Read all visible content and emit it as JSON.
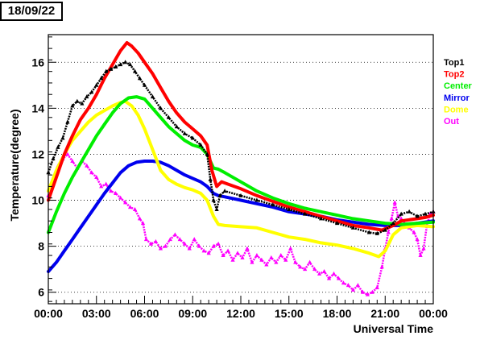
{
  "header": {
    "date": "18/09/22"
  },
  "chart_data": {
    "type": "line",
    "xlabel": "Universal Time",
    "ylabel": "Temperature(degree)",
    "xlim": [
      0,
      24
    ],
    "ylim": [
      5.5,
      17.2
    ],
    "x_ticks": [
      {
        "v": 0,
        "label": "00:00"
      },
      {
        "v": 3,
        "label": "03:00"
      },
      {
        "v": 6,
        "label": "06:00"
      },
      {
        "v": 9,
        "label": "09:00"
      },
      {
        "v": 12,
        "label": "12:00"
      },
      {
        "v": 15,
        "label": "15:00"
      },
      {
        "v": 18,
        "label": "18:00"
      },
      {
        "v": 21,
        "label": "21:00"
      },
      {
        "v": 24,
        "label": "00:00"
      }
    ],
    "y_ticks": [
      6,
      8,
      10,
      12,
      14,
      16
    ],
    "grid": "horizontal-dotted",
    "legend_position": "right",
    "series": [
      {
        "name": "Top1",
        "color": "#000000",
        "style": "markers",
        "points": [
          [
            0,
            11.2
          ],
          [
            0.3,
            11.8
          ],
          [
            0.6,
            12.3
          ],
          [
            0.9,
            12.7
          ],
          [
            1.2,
            13.4
          ],
          [
            1.5,
            14.1
          ],
          [
            1.8,
            14.3
          ],
          [
            2.1,
            14.2
          ],
          [
            2.4,
            14.5
          ],
          [
            2.7,
            14.7
          ],
          [
            3.0,
            15.0
          ],
          [
            3.3,
            15.3
          ],
          [
            3.6,
            15.6
          ],
          [
            3.9,
            15.7
          ],
          [
            4.2,
            15.8
          ],
          [
            4.5,
            15.9
          ],
          [
            4.8,
            16.0
          ],
          [
            5.1,
            15.9
          ],
          [
            5.4,
            15.6
          ],
          [
            5.7,
            15.3
          ],
          [
            6.0,
            15.0
          ],
          [
            6.5,
            14.5
          ],
          [
            7.0,
            14.0
          ],
          [
            7.5,
            13.6
          ],
          [
            8.0,
            13.2
          ],
          [
            8.5,
            12.9
          ],
          [
            9.0,
            12.7
          ],
          [
            9.5,
            12.4
          ],
          [
            9.9,
            12.0
          ],
          [
            10.1,
            10.9
          ],
          [
            10.3,
            10.0
          ],
          [
            10.5,
            9.6
          ],
          [
            10.7,
            10.2
          ],
          [
            11.0,
            10.4
          ],
          [
            12.0,
            10.2
          ],
          [
            13.0,
            10.0
          ],
          [
            14.0,
            9.8
          ],
          [
            15.0,
            9.6
          ],
          [
            16.0,
            9.4
          ],
          [
            17.0,
            9.2
          ],
          [
            18.0,
            9.0
          ],
          [
            19.0,
            8.8
          ],
          [
            20.0,
            8.6
          ],
          [
            20.5,
            8.55
          ],
          [
            21.0,
            8.7
          ],
          [
            21.5,
            9.0
          ],
          [
            22.0,
            9.4
          ],
          [
            22.5,
            9.5
          ],
          [
            23.0,
            9.3
          ],
          [
            23.5,
            9.4
          ],
          [
            24.0,
            9.5
          ]
        ]
      },
      {
        "name": "Top2",
        "color": "#ff0000",
        "style": "line",
        "points": [
          [
            0,
            10.0
          ],
          [
            0.5,
            11.0
          ],
          [
            1.0,
            12.0
          ],
          [
            1.5,
            12.8
          ],
          [
            2.0,
            13.5
          ],
          [
            2.5,
            14.0
          ],
          [
            3.0,
            14.6
          ],
          [
            3.5,
            15.3
          ],
          [
            4.0,
            15.9
          ],
          [
            4.5,
            16.5
          ],
          [
            4.9,
            16.85
          ],
          [
            5.2,
            16.7
          ],
          [
            5.6,
            16.4
          ],
          [
            6.0,
            16.0
          ],
          [
            6.5,
            15.5
          ],
          [
            7.0,
            14.9
          ],
          [
            7.5,
            14.3
          ],
          [
            8.0,
            13.8
          ],
          [
            8.5,
            13.4
          ],
          [
            9.0,
            13.1
          ],
          [
            9.5,
            12.8
          ],
          [
            9.9,
            12.4
          ],
          [
            10.2,
            11.3
          ],
          [
            10.5,
            10.6
          ],
          [
            10.8,
            10.8
          ],
          [
            11.0,
            10.75
          ],
          [
            12.0,
            10.5
          ],
          [
            13.0,
            10.2
          ],
          [
            14.0,
            9.95
          ],
          [
            15.0,
            9.7
          ],
          [
            16.0,
            9.5
          ],
          [
            17.0,
            9.3
          ],
          [
            18.0,
            9.1
          ],
          [
            19.0,
            8.9
          ],
          [
            20.0,
            8.8
          ],
          [
            20.8,
            8.7
          ],
          [
            21.5,
            8.9
          ],
          [
            22.0,
            9.1
          ],
          [
            22.5,
            9.15
          ],
          [
            23.0,
            9.2
          ],
          [
            23.5,
            9.25
          ],
          [
            24.0,
            9.35
          ]
        ]
      },
      {
        "name": "Center",
        "color": "#00ee00",
        "style": "line",
        "points": [
          [
            0,
            8.6
          ],
          [
            0.5,
            9.5
          ],
          [
            1.0,
            10.3
          ],
          [
            1.5,
            11.0
          ],
          [
            2.0,
            11.6
          ],
          [
            2.5,
            12.2
          ],
          [
            3.0,
            12.8
          ],
          [
            3.5,
            13.3
          ],
          [
            4.0,
            13.8
          ],
          [
            4.5,
            14.2
          ],
          [
            5.0,
            14.45
          ],
          [
            5.5,
            14.5
          ],
          [
            6.0,
            14.4
          ],
          [
            6.5,
            14.0
          ],
          [
            7.0,
            13.6
          ],
          [
            7.5,
            13.2
          ],
          [
            8.0,
            12.9
          ],
          [
            8.5,
            12.6
          ],
          [
            9.0,
            12.4
          ],
          [
            9.5,
            12.3
          ],
          [
            9.9,
            12.0
          ],
          [
            10.3,
            11.4
          ],
          [
            10.6,
            11.35
          ],
          [
            11.0,
            11.2
          ],
          [
            12.0,
            10.8
          ],
          [
            13.0,
            10.4
          ],
          [
            14.0,
            10.1
          ],
          [
            15.0,
            9.85
          ],
          [
            16.0,
            9.65
          ],
          [
            17.0,
            9.5
          ],
          [
            18.0,
            9.35
          ],
          [
            19.0,
            9.2
          ],
          [
            20.0,
            9.1
          ],
          [
            21.0,
            9.0
          ],
          [
            22.0,
            8.95
          ],
          [
            23.0,
            9.0
          ],
          [
            24.0,
            9.05
          ]
        ]
      },
      {
        "name": "Mirror",
        "color": "#0000ee",
        "style": "line",
        "points": [
          [
            0,
            6.9
          ],
          [
            0.5,
            7.3
          ],
          [
            1.0,
            7.8
          ],
          [
            1.5,
            8.3
          ],
          [
            2.0,
            8.8
          ],
          [
            2.5,
            9.3
          ],
          [
            3.0,
            9.8
          ],
          [
            3.5,
            10.3
          ],
          [
            4.0,
            10.75
          ],
          [
            4.5,
            11.2
          ],
          [
            5.0,
            11.5
          ],
          [
            5.5,
            11.65
          ],
          [
            6.0,
            11.7
          ],
          [
            6.5,
            11.7
          ],
          [
            7.0,
            11.65
          ],
          [
            7.5,
            11.5
          ],
          [
            8.0,
            11.3
          ],
          [
            8.5,
            11.1
          ],
          [
            9.0,
            10.95
          ],
          [
            9.5,
            10.8
          ],
          [
            9.9,
            10.6
          ],
          [
            10.3,
            10.3
          ],
          [
            10.6,
            10.2
          ],
          [
            11.0,
            10.15
          ],
          [
            12.0,
            10.0
          ],
          [
            13.0,
            9.85
          ],
          [
            14.0,
            9.7
          ],
          [
            15.0,
            9.5
          ],
          [
            16.0,
            9.4
          ],
          [
            17.0,
            9.3
          ],
          [
            18.0,
            9.15
          ],
          [
            19.0,
            9.05
          ],
          [
            20.0,
            8.95
          ],
          [
            21.0,
            8.9
          ],
          [
            22.0,
            8.9
          ],
          [
            23.0,
            9.0
          ],
          [
            24.0,
            9.1
          ]
        ]
      },
      {
        "name": "Dome",
        "color": "#ffff00",
        "style": "line",
        "points": [
          [
            0,
            10.4
          ],
          [
            0.5,
            11.3
          ],
          [
            1.0,
            12.0
          ],
          [
            1.5,
            12.6
          ],
          [
            2.0,
            13.0
          ],
          [
            2.5,
            13.4
          ],
          [
            3.0,
            13.7
          ],
          [
            3.5,
            13.9
          ],
          [
            4.0,
            14.1
          ],
          [
            4.5,
            14.25
          ],
          [
            4.8,
            14.3
          ],
          [
            5.2,
            14.1
          ],
          [
            5.6,
            13.7
          ],
          [
            6.0,
            13.1
          ],
          [
            6.5,
            12.2
          ],
          [
            7.0,
            11.3
          ],
          [
            7.5,
            10.9
          ],
          [
            8.0,
            10.7
          ],
          [
            8.5,
            10.55
          ],
          [
            9.0,
            10.45
          ],
          [
            9.5,
            10.3
          ],
          [
            9.9,
            10.0
          ],
          [
            10.3,
            9.3
          ],
          [
            10.6,
            8.95
          ],
          [
            11.0,
            8.9
          ],
          [
            12.0,
            8.85
          ],
          [
            13.0,
            8.8
          ],
          [
            14.0,
            8.6
          ],
          [
            15.0,
            8.4
          ],
          [
            16.0,
            8.3
          ],
          [
            17.0,
            8.15
          ],
          [
            18.0,
            8.05
          ],
          [
            19.0,
            7.9
          ],
          [
            20.0,
            7.7
          ],
          [
            20.6,
            7.55
          ],
          [
            21.0,
            7.8
          ],
          [
            21.5,
            8.5
          ],
          [
            22.0,
            8.8
          ],
          [
            23.0,
            8.9
          ],
          [
            24.0,
            8.85
          ]
        ]
      },
      {
        "name": "Out",
        "color": "#ff00ff",
        "style": "markers",
        "points": [
          [
            0,
            10.2
          ],
          [
            0.3,
            10.9
          ],
          [
            0.6,
            11.5
          ],
          [
            0.9,
            11.8
          ],
          [
            1.2,
            12.0
          ],
          [
            1.5,
            11.7
          ],
          [
            1.8,
            11.4
          ],
          [
            2.1,
            11.7
          ],
          [
            2.4,
            11.5
          ],
          [
            2.7,
            11.2
          ],
          [
            3.0,
            11.0
          ],
          [
            3.3,
            10.6
          ],
          [
            3.6,
            10.7
          ],
          [
            3.9,
            10.4
          ],
          [
            4.2,
            10.3
          ],
          [
            4.5,
            10.1
          ],
          [
            4.8,
            9.9
          ],
          [
            5.1,
            9.7
          ],
          [
            5.4,
            9.6
          ],
          [
            5.7,
            9.2
          ],
          [
            5.9,
            9.0
          ],
          [
            6.1,
            8.3
          ],
          [
            6.4,
            8.1
          ],
          [
            6.7,
            8.2
          ],
          [
            7.0,
            7.9
          ],
          [
            7.3,
            8.0
          ],
          [
            7.6,
            8.3
          ],
          [
            7.9,
            8.5
          ],
          [
            8.2,
            8.3
          ],
          [
            8.5,
            8.1
          ],
          [
            8.8,
            7.9
          ],
          [
            9.1,
            8.3
          ],
          [
            9.4,
            8.0
          ],
          [
            9.7,
            7.8
          ],
          [
            10.0,
            7.7
          ],
          [
            10.3,
            8.0
          ],
          [
            10.6,
            8.1
          ],
          [
            10.9,
            7.6
          ],
          [
            11.2,
            7.8
          ],
          [
            11.5,
            7.4
          ],
          [
            11.8,
            7.7
          ],
          [
            12.1,
            7.5
          ],
          [
            12.4,
            7.9
          ],
          [
            12.7,
            7.3
          ],
          [
            13.0,
            7.6
          ],
          [
            13.3,
            7.4
          ],
          [
            13.6,
            7.2
          ],
          [
            13.9,
            7.5
          ],
          [
            14.2,
            7.3
          ],
          [
            14.5,
            7.6
          ],
          [
            14.8,
            7.4
          ],
          [
            15.1,
            7.9
          ],
          [
            15.4,
            7.3
          ],
          [
            15.7,
            7.1
          ],
          [
            16.0,
            7.0
          ],
          [
            16.3,
            7.3
          ],
          [
            16.6,
            7.0
          ],
          [
            16.9,
            6.8
          ],
          [
            17.2,
            6.9
          ],
          [
            17.5,
            6.6
          ],
          [
            17.8,
            6.8
          ],
          [
            18.1,
            6.6
          ],
          [
            18.4,
            6.4
          ],
          [
            18.7,
            6.3
          ],
          [
            19.0,
            6.1
          ],
          [
            19.3,
            6.3
          ],
          [
            19.6,
            6.0
          ],
          [
            19.9,
            5.9
          ],
          [
            20.2,
            6.0
          ],
          [
            20.5,
            6.2
          ],
          [
            20.8,
            7.1
          ],
          [
            21.0,
            7.9
          ],
          [
            21.2,
            8.6
          ],
          [
            21.4,
            9.2
          ],
          [
            21.6,
            9.9
          ],
          [
            21.8,
            9.3
          ],
          [
            22.0,
            9.2
          ],
          [
            22.2,
            9.0
          ],
          [
            22.5,
            8.8
          ],
          [
            22.8,
            8.6
          ],
          [
            23.0,
            8.3
          ],
          [
            23.2,
            7.6
          ],
          [
            23.4,
            7.9
          ],
          [
            23.6,
            8.9
          ],
          [
            23.8,
            9.4
          ],
          [
            24.0,
            9.5
          ]
        ]
      }
    ]
  }
}
